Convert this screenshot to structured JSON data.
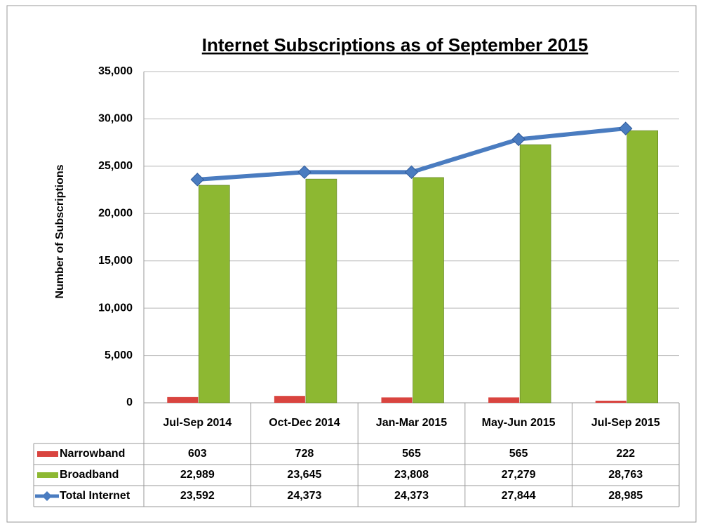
{
  "chart_data": {
    "type": "bar_line_table",
    "title": "Internet Subscriptions as of September 2015",
    "y_label": "Number of Subscriptions",
    "categories": [
      "Jul-Sep 2014",
      "Oct-Dec 2014",
      "Jan-Mar 2015",
      "May-Jun 2015",
      "Jul-Sep 2015"
    ],
    "series": [
      {
        "name": "Narrowband",
        "color": "#d9443f",
        "kind": "bar",
        "values": [
          603,
          728,
          565,
          565,
          222
        ]
      },
      {
        "name": "Broadband",
        "color": "#8db832",
        "kind": "bar",
        "values": [
          22989,
          23645,
          23808,
          27279,
          28763
        ],
        "value_labels": [
          "22,989",
          "23,645",
          "23,808",
          "27,279",
          "28,763"
        ]
      },
      {
        "name": "Total Internet",
        "color": "#4a7cc0",
        "kind": "line",
        "values": [
          23592,
          24373,
          24373,
          27844,
          28985
        ],
        "value_labels": [
          "23,592",
          "24,373",
          "24,373",
          "27,844",
          "28,985"
        ]
      }
    ],
    "ylim": [
      0,
      35000
    ],
    "yticks": [
      0,
      {
        "value": 5000,
        "label": "5,000"
      },
      {
        "value": 10000,
        "label": "10,000"
      },
      {
        "value": 15000,
        "label": "15,000"
      },
      {
        "value": 20000,
        "label": "20,000"
      },
      {
        "value": 25000,
        "label": "25,000"
      },
      {
        "value": 30000,
        "label": "30,000"
      },
      {
        "value": 35000,
        "label": "35,000"
      }
    ],
    "grid": true
  }
}
